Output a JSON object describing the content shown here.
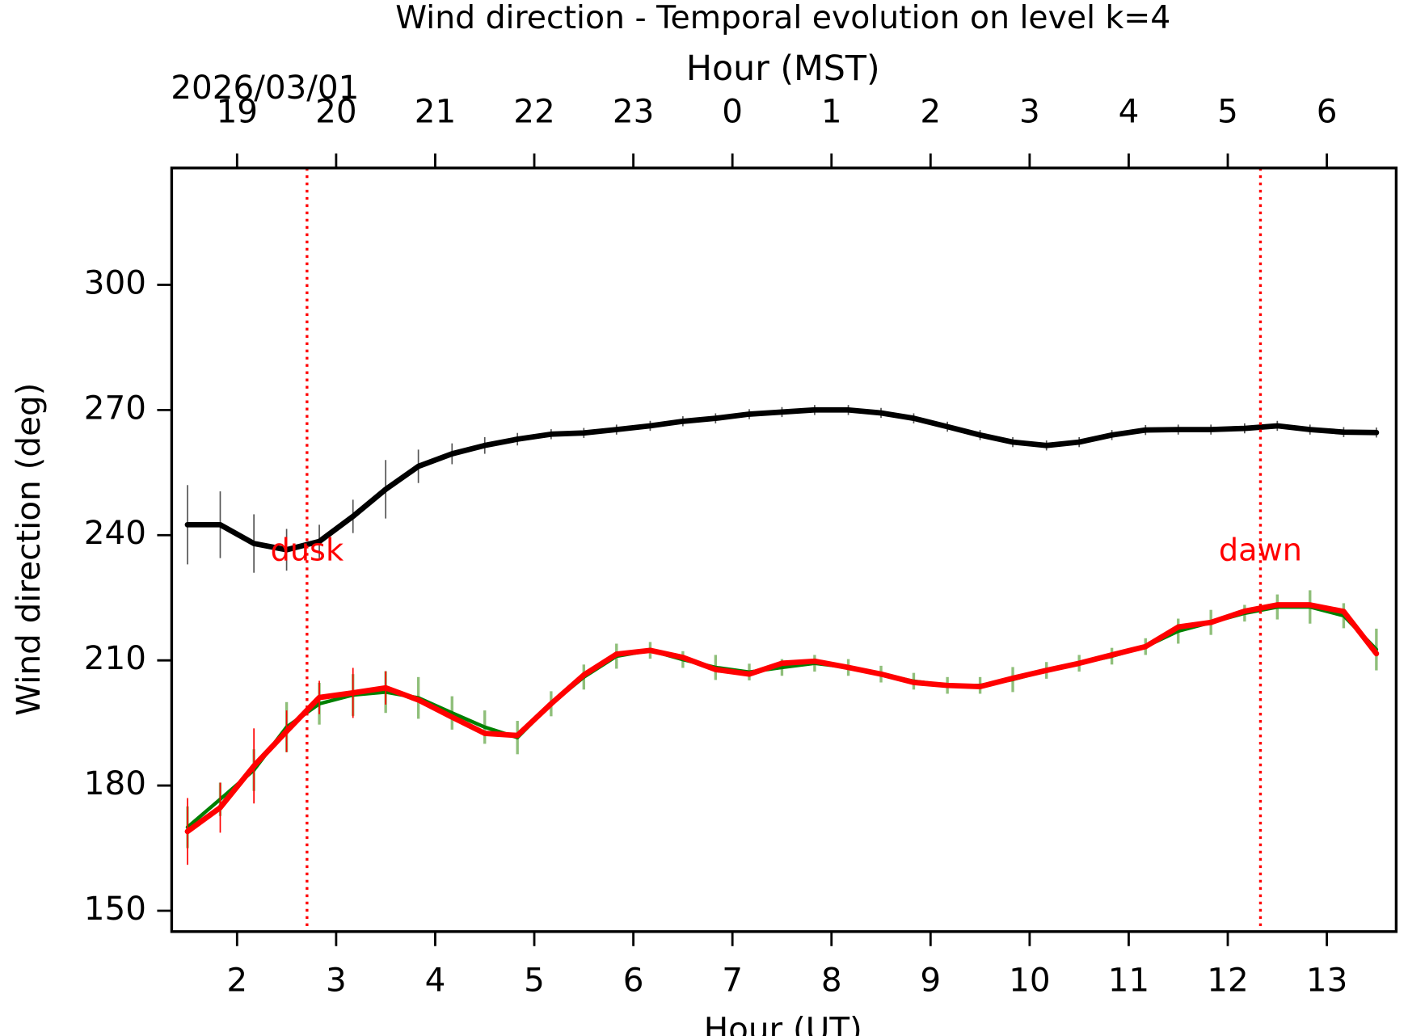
{
  "chart_data": {
    "type": "line",
    "title": "Wind direction - Temporal evolution on level k=4",
    "xlabel": "Hour (UT)",
    "ylabel": "Wind direction (deg)",
    "x2label": "Hour (MST)",
    "date_label": "2026/03/01",
    "xlim": [
      1.34,
      13.7
    ],
    "ylim": [
      145,
      328
    ],
    "xticks": [
      2,
      3,
      4,
      5,
      6,
      7,
      8,
      9,
      10,
      11,
      12,
      13
    ],
    "yticks": [
      150,
      180,
      210,
      240,
      270,
      300
    ],
    "x2ticks": [
      {
        "value": 2,
        "label": "19"
      },
      {
        "value": 3,
        "label": "20"
      },
      {
        "value": 4,
        "label": "21"
      },
      {
        "value": 5,
        "label": "22"
      },
      {
        "value": 6,
        "label": "23"
      },
      {
        "value": 7,
        "label": "0"
      },
      {
        "value": 8,
        "label": "1"
      },
      {
        "value": 9,
        "label": "2"
      },
      {
        "value": 10,
        "label": "3"
      },
      {
        "value": 11,
        "label": "4"
      },
      {
        "value": 12,
        "label": "5"
      },
      {
        "value": 13,
        "label": "6"
      }
    ],
    "x": [
      1.5,
      1.83,
      2.17,
      2.5,
      2.83,
      3.17,
      3.5,
      3.83,
      4.17,
      4.5,
      4.83,
      5.17,
      5.5,
      5.83,
      6.17,
      6.5,
      6.83,
      7.17,
      7.5,
      7.83,
      8.17,
      8.5,
      8.83,
      9.17,
      9.5,
      9.83,
      10.17,
      10.5,
      10.83,
      11.17,
      11.5,
      11.83,
      12.17,
      12.5,
      12.83,
      13.17,
      13.5
    ],
    "series": [
      {
        "color": "#008000",
        "error_color": "#8fbf7a",
        "width": 4,
        "values": [
          170,
          176.7,
          183.7,
          194,
          199.6,
          201.7,
          202.4,
          201,
          197.4,
          194,
          191.5,
          199.6,
          206,
          211,
          212.4,
          210.2,
          208.3,
          207.2,
          208.3,
          209.3,
          208.3,
          206.7,
          205,
          204,
          204,
          205.4,
          207.6,
          209.3,
          211,
          213.3,
          217,
          219.1,
          221.3,
          222.8,
          222.8,
          220.7,
          212.6
        ],
        "errors": [
          5,
          4,
          5,
          6,
          5,
          5,
          5,
          5,
          4,
          4,
          4,
          3,
          3,
          3,
          2,
          2,
          3,
          2,
          2,
          2,
          2,
          2,
          2,
          2,
          2,
          3,
          2,
          2,
          2,
          2,
          3,
          3,
          2,
          3,
          4,
          3,
          5
        ]
      },
      {
        "color": "#ff0000",
        "error_color": "#ff0000",
        "width": 6,
        "values": [
          169,
          174.7,
          184.7,
          193,
          201.1,
          202.2,
          203.4,
          200.5,
          196.4,
          192.5,
          192,
          199.6,
          206.5,
          211.5,
          212.4,
          210.7,
          207.8,
          206.7,
          209.3,
          209.8,
          208.3,
          206.7,
          204.7,
          204,
          203.7,
          205.7,
          207.6,
          209.3,
          211.3,
          213.3,
          218,
          219.1,
          221.8,
          223.3,
          223.3,
          221.7,
          211.6
        ],
        "errors": [
          8,
          6,
          9,
          5,
          4,
          6,
          4,
          null,
          null,
          null,
          null,
          null,
          null,
          null,
          null,
          null,
          null,
          null,
          null,
          null,
          null,
          null,
          null,
          null,
          null,
          null,
          null,
          null,
          null,
          null,
          null,
          null,
          null,
          null,
          null,
          null,
          null
        ]
      },
      {
        "color": "#000000",
        "error_color": "#555555",
        "width": 6,
        "values": [
          242.5,
          242.5,
          238,
          236.5,
          238.5,
          244.5,
          251,
          256.5,
          259.5,
          261.5,
          263,
          264.2,
          264.5,
          265.3,
          266.2,
          267.3,
          268,
          269,
          269.5,
          270,
          270,
          269.3,
          268,
          266,
          264,
          262.3,
          261.5,
          262.3,
          264,
          265.2,
          265.3,
          265.3,
          265.6,
          266.2,
          265.3,
          264.7,
          264.6
        ],
        "errors": [
          9.5,
          8,
          7,
          5,
          4,
          4,
          7,
          4,
          2.5,
          2,
          1.5,
          1.2,
          1.2,
          1.2,
          1.2,
          1.2,
          1.2,
          1.2,
          1.2,
          1.2,
          1.2,
          1.2,
          1.2,
          1.2,
          1.2,
          1.2,
          1.2,
          1.2,
          1.2,
          1.2,
          1.2,
          1.2,
          1.2,
          1.2,
          1.2,
          1.2,
          1.2
        ]
      }
    ],
    "annotations": [
      {
        "text": "dusk",
        "x": 2.706,
        "label_y": 236,
        "color": "#ff0000"
      },
      {
        "text": "dawn",
        "x": 12.33,
        "label_y": 236,
        "color": "#ff0000"
      }
    ]
  }
}
